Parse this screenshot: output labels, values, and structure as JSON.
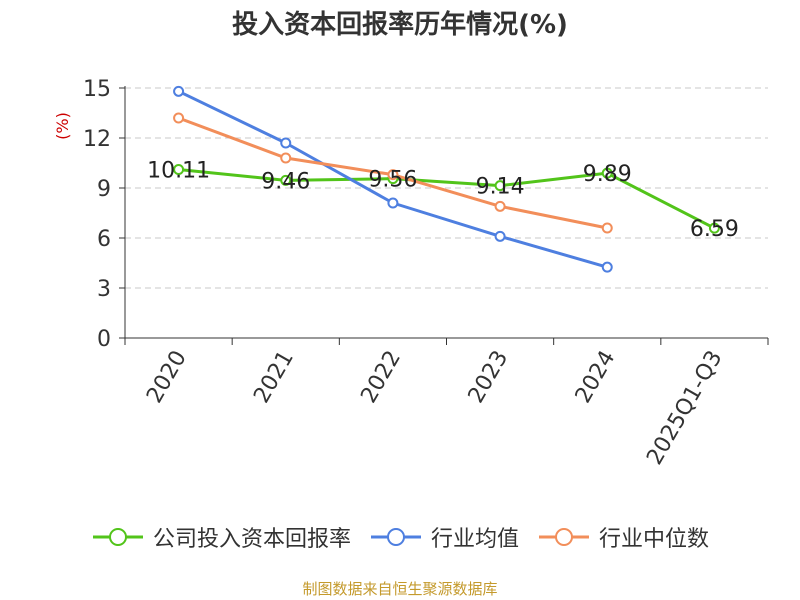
{
  "chart_data": {
    "type": "line",
    "title": "投入资本回报率历年情况(%)",
    "ylabel": "(%)",
    "xlabel": "",
    "categories": [
      "2020",
      "2021",
      "2022",
      "2023",
      "2024",
      "2025Q1-Q3"
    ],
    "ylim": [
      0,
      15
    ],
    "yticks": [
      0,
      3,
      6,
      9,
      12,
      15
    ],
    "grid": true,
    "legend_position": "bottom",
    "series": [
      {
        "name": "公司投入资本回报率",
        "color": "#52c41a",
        "values": [
          10.11,
          9.46,
          9.56,
          9.14,
          9.89,
          6.59
        ],
        "labels": [
          "10.11",
          "9.46",
          "9.56",
          "9.14",
          "9.89",
          "6.59"
        ]
      },
      {
        "name": "行业均值",
        "color": "#4e7fe0",
        "values": [
          14.8,
          11.7,
          8.1,
          6.1,
          4.25,
          null
        ]
      },
      {
        "name": "行业中位数",
        "color": "#f28e5a",
        "values": [
          13.2,
          10.8,
          9.8,
          7.9,
          6.6,
          null
        ]
      }
    ]
  },
  "source": "制图数据来自恒生聚源数据库"
}
